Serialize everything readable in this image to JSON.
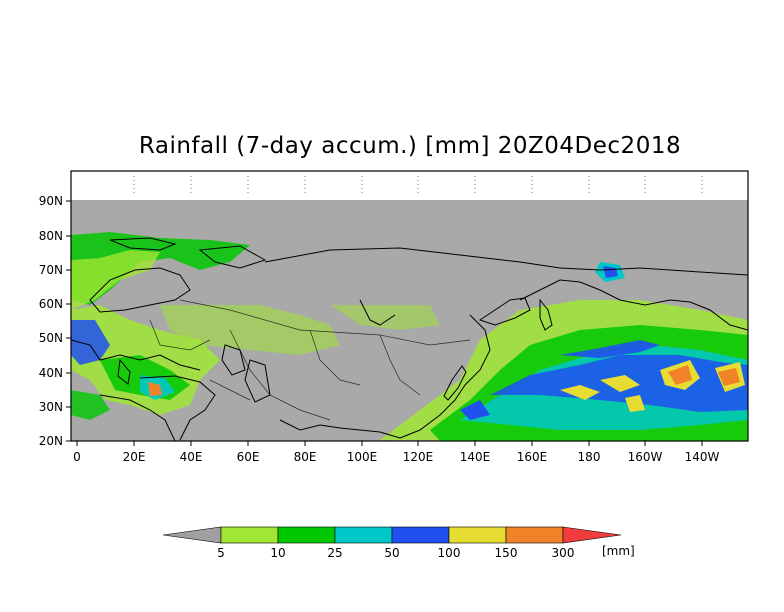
{
  "title": "Rainfall (7-day accum.) [mm] 20Z04Dec2018",
  "lat_labels": [
    "90N",
    "80N",
    "70N",
    "60N",
    "50N",
    "40N",
    "30N",
    "20N"
  ],
  "lon_labels": [
    "0",
    "20E",
    "40E",
    "60E",
    "80E",
    "100E",
    "120E",
    "140E",
    "160E",
    "180",
    "160W",
    "140W"
  ],
  "legend": {
    "thresholds": [
      "5",
      "10",
      "25",
      "50",
      "100",
      "150",
      "300"
    ],
    "unit": "[mm]",
    "colors": [
      "#a0a0a0",
      "#a0e632",
      "#00c800",
      "#00c8c8",
      "#2050f0",
      "#e6dc32",
      "#f08228",
      "#f03c3c"
    ]
  },
  "colors": {
    "no_data": "#a9a9a9",
    "coastline": "#000000"
  }
}
